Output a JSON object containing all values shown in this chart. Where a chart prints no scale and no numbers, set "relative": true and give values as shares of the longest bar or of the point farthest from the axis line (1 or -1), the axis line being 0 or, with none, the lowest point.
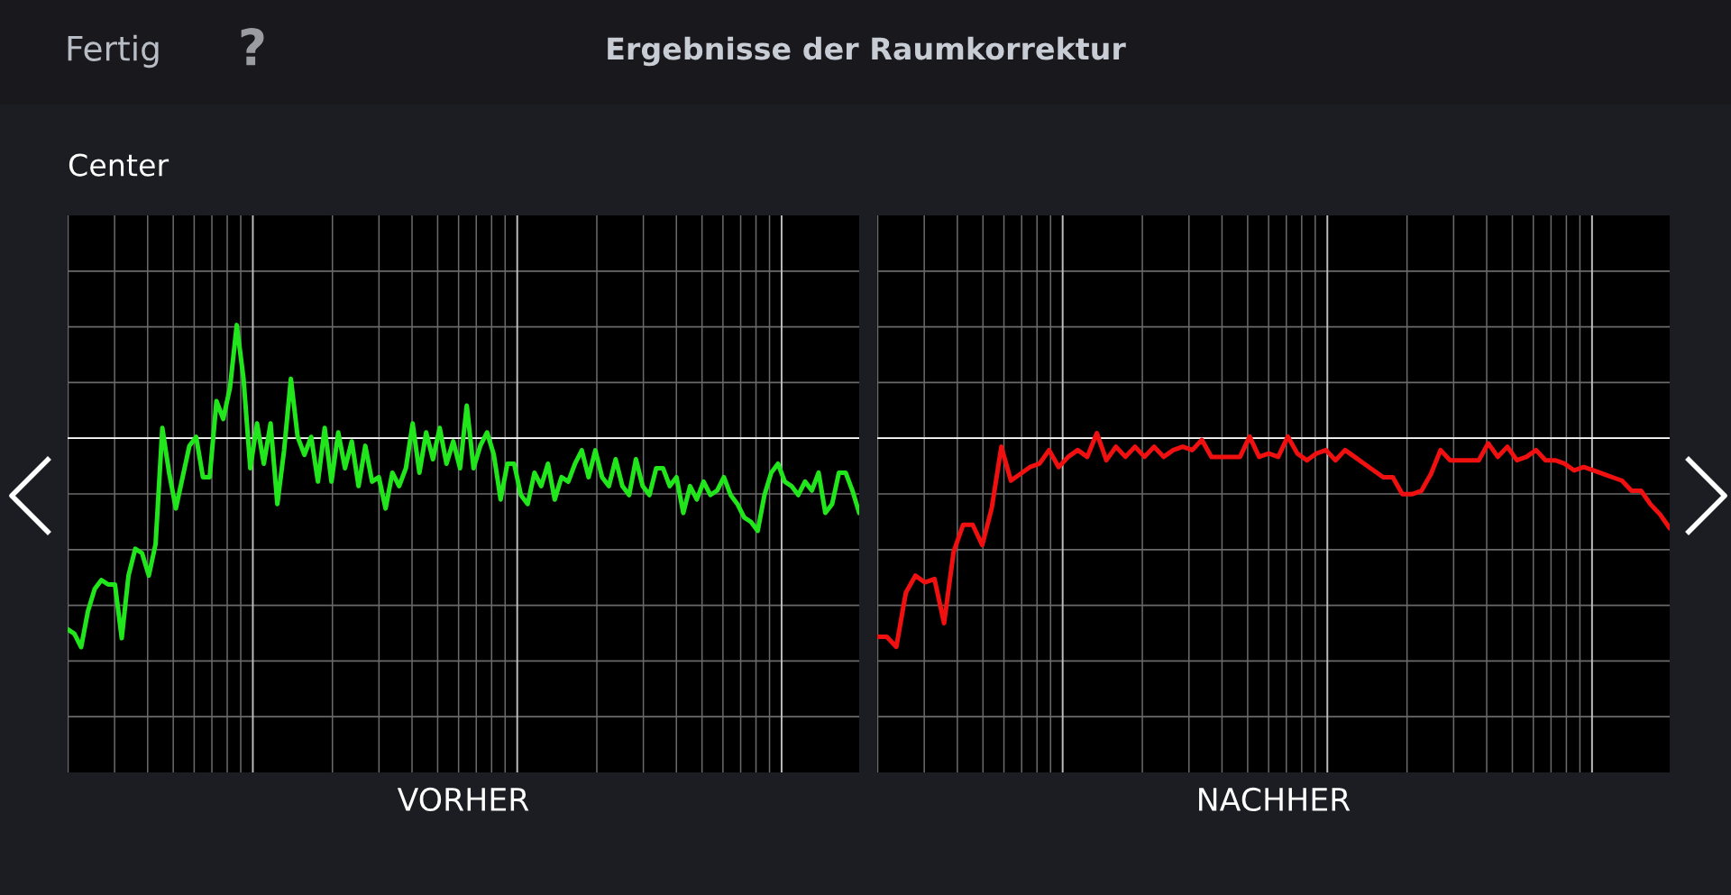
{
  "chart_data": [
    {
      "type": "line",
      "title": "Ergebnisse der Raumkorrektur",
      "subtitle": "Center",
      "annotations": [
        "Fertig",
        "?"
      ],
      "xlabel": "VORHER",
      "relative": true,
      "grid": true,
      "categories": [
        null,
        null,
        null,
        null,
        null,
        null,
        null,
        null,
        null,
        null,
        null,
        null,
        null,
        null,
        null,
        null,
        null,
        null,
        null,
        null,
        null,
        null,
        null,
        null,
        null,
        null,
        null,
        null,
        null,
        null,
        null,
        null,
        null,
        null,
        null,
        null,
        null,
        null,
        null,
        null,
        null,
        null,
        null,
        null,
        null,
        null,
        null,
        null,
        null,
        null,
        null,
        null,
        null,
        null,
        null,
        null,
        null,
        null,
        null,
        null,
        null,
        null,
        null,
        null,
        null,
        null,
        null,
        null,
        null,
        null,
        null,
        null,
        null,
        null,
        null,
        null,
        null,
        null,
        null,
        null,
        null,
        null,
        null,
        null,
        null,
        null,
        null,
        null,
        null,
        null,
        null,
        null,
        null,
        null,
        null,
        null,
        null,
        null,
        null,
        null,
        null,
        null,
        null,
        null,
        null,
        null,
        null,
        null,
        null,
        null,
        null,
        null,
        null,
        null,
        null,
        null,
        null,
        null
      ],
      "series": [
        {
          "color": "#22e61c",
          "values": [
            0.32,
            0.31,
            0.28,
            0.36,
            0.41,
            0.43,
            0.42,
            0.42,
            0.3,
            0.44,
            0.5,
            0.49,
            0.44,
            0.51,
            0.77,
            0.67,
            0.59,
            0.66,
            0.73,
            0.75,
            0.66,
            0.66,
            0.83,
            0.79,
            0.86,
            1.0,
            0.88,
            0.68,
            0.78,
            0.69,
            0.78,
            0.6,
            0.72,
            0.88,
            0.75,
            0.71,
            0.75,
            0.65,
            0.77,
            0.65,
            0.76,
            0.68,
            0.74,
            0.64,
            0.73,
            0.65,
            0.66,
            0.59,
            0.67,
            0.64,
            0.68,
            0.78,
            0.67,
            0.76,
            0.7,
            0.77,
            0.69,
            0.74,
            0.68,
            0.82,
            0.68,
            0.73,
            0.76,
            0.71,
            0.61,
            0.69,
            0.69,
            0.62,
            0.6,
            0.67,
            0.64,
            0.69,
            0.61,
            0.66,
            0.65,
            0.69,
            0.72,
            0.66,
            0.72,
            0.66,
            0.64,
            0.7,
            0.64,
            0.62,
            0.7,
            0.64,
            0.62,
            0.68,
            0.68,
            0.64,
            0.66,
            0.58,
            0.64,
            0.61,
            0.65,
            0.62,
            0.63,
            0.66,
            0.62,
            0.6,
            0.57,
            0.56,
            0.54,
            0.62,
            0.67,
            0.69,
            0.65,
            0.64,
            0.62,
            0.65,
            0.63,
            0.67,
            0.58,
            0.6,
            0.67,
            0.67,
            0.63,
            0.58
          ]
        }
      ],
      "ref_lines": [
        {
          "axis": "y",
          "value": 0.747,
          "color": "#ffffff"
        }
      ]
    },
    {
      "type": "line",
      "xlabel": "NACHHER",
      "relative": true,
      "grid": true,
      "categories": [
        null,
        null,
        null,
        null,
        null,
        null,
        null,
        null,
        null,
        null,
        null,
        null,
        null,
        null,
        null,
        null,
        null,
        null,
        null,
        null,
        null,
        null,
        null,
        null,
        null,
        null,
        null,
        null,
        null,
        null,
        null,
        null,
        null,
        null,
        null,
        null,
        null,
        null,
        null,
        null,
        null,
        null,
        null,
        null,
        null,
        null,
        null,
        null,
        null,
        null,
        null,
        null,
        null,
        null,
        null,
        null,
        null,
        null,
        null,
        null,
        null,
        null,
        null,
        null,
        null,
        null,
        null,
        null,
        null,
        null,
        null,
        null,
        null,
        null,
        null,
        null,
        null,
        null,
        null,
        null,
        null,
        null,
        null,
        null
      ],
      "series": [
        {
          "color": "#f01010",
          "values": [
            0.4,
            0.4,
            0.37,
            0.53,
            0.58,
            0.56,
            0.57,
            0.44,
            0.65,
            0.73,
            0.73,
            0.67,
            0.78,
            0.96,
            0.86,
            0.88,
            0.9,
            0.91,
            0.95,
            0.9,
            0.93,
            0.95,
            0.93,
            1.0,
            0.92,
            0.96,
            0.93,
            0.96,
            0.93,
            0.96,
            0.93,
            0.95,
            0.96,
            0.95,
            0.98,
            0.93,
            0.93,
            0.93,
            0.93,
            0.99,
            0.93,
            0.94,
            0.93,
            0.99,
            0.94,
            0.92,
            0.94,
            0.95,
            0.92,
            0.95,
            0.93,
            0.91,
            0.89,
            0.87,
            0.87,
            0.82,
            0.82,
            0.83,
            0.88,
            0.95,
            0.92,
            0.92,
            0.92,
            0.92,
            0.97,
            0.93,
            0.96,
            0.92,
            0.93,
            0.95,
            0.92,
            0.92,
            0.91,
            0.89,
            0.9,
            0.89,
            0.88,
            0.87,
            0.86,
            0.83,
            0.83,
            0.79,
            0.76,
            0.72
          ]
        }
      ],
      "ref_lines": [
        {
          "axis": "y",
          "value": 0.985,
          "color": "#ffffff"
        }
      ]
    }
  ]
}
